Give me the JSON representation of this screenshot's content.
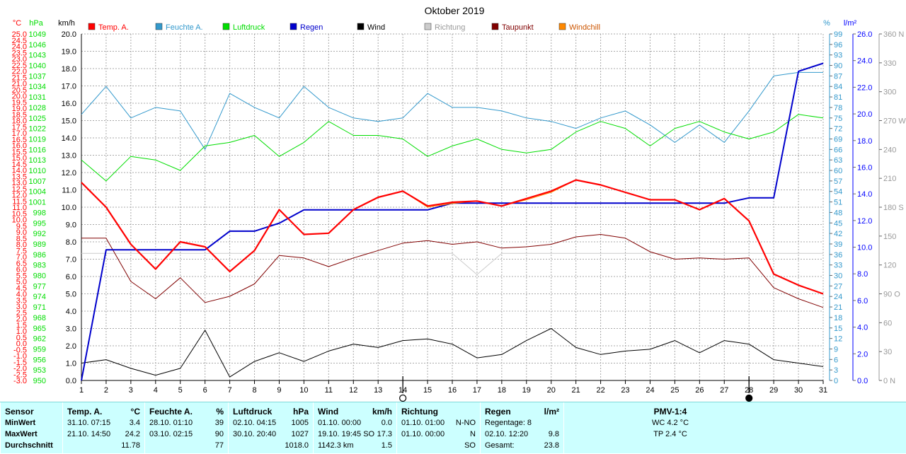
{
  "chart_data": {
    "type": "line",
    "title": "Oktober 2019",
    "x": [
      1,
      2,
      3,
      4,
      5,
      6,
      7,
      8,
      9,
      10,
      11,
      12,
      13,
      14,
      15,
      16,
      17,
      18,
      19,
      20,
      21,
      22,
      23,
      24,
      25,
      26,
      27,
      28,
      29,
      30,
      31
    ],
    "xlim": [
      1,
      31
    ],
    "x_markers": [
      14,
      28
    ],
    "axes": [
      {
        "unit": "°C",
        "color": "#ff0000",
        "min": -3.0,
        "max": 25.0,
        "step": 0.5,
        "decimals": 1
      },
      {
        "unit": "hPa",
        "color": "#00dd00",
        "min": 950,
        "max": 1049,
        "step": 3,
        "decimals": 0
      },
      {
        "unit": "km/h",
        "color": "#000000",
        "min": 0.0,
        "max": 20.0,
        "step": 1.0,
        "decimals": 1
      },
      {
        "unit": "%",
        "color": "#3399cc",
        "min": 0,
        "max": 99,
        "step": 3,
        "decimals": 0
      },
      {
        "unit": "l/m²",
        "color": "#0000ff",
        "min": 0.0,
        "max": 26.0,
        "step": 2.0,
        "decimals": 1
      },
      {
        "unit": "",
        "color": "#999999",
        "min": 0,
        "max": 360,
        "step": 30,
        "decimals": 0,
        "labels": {
          "0": "0 N",
          "90": "90 O",
          "180": "180 S",
          "270": "270 W",
          "360": "360 N"
        }
      }
    ],
    "series": [
      {
        "name": "Temp. A.",
        "axis": 0,
        "color": "#ff0000",
        "width": 2.2,
        "values": [
          13.0,
          11.0,
          8.0,
          6.0,
          8.2,
          7.8,
          5.8,
          7.5,
          10.8,
          8.8,
          8.9,
          10.8,
          11.8,
          12.3,
          11.1,
          11.4,
          11.5,
          11.1,
          11.7,
          12.3,
          13.2,
          12.8,
          12.2,
          11.6,
          11.6,
          10.8,
          11.7,
          9.9,
          5.6,
          4.7,
          4.0
        ]
      },
      {
        "name": "Feuchte A.",
        "axis": 3,
        "color": "#3399cc",
        "width": 1,
        "values": [
          76,
          84,
          75,
          78,
          77,
          66,
          82,
          78,
          75,
          84,
          78,
          75,
          74,
          75,
          82,
          78,
          78,
          77,
          75,
          74,
          72,
          75,
          77,
          73,
          68,
          73,
          68,
          77,
          87,
          88,
          88
        ]
      },
      {
        "name": "Luftdruck",
        "axis": 1,
        "color": "#00dd00",
        "width": 1,
        "values": [
          1013,
          1007,
          1014,
          1013,
          1010,
          1017,
          1018,
          1020,
          1014,
          1018,
          1024,
          1020,
          1020,
          1019,
          1014,
          1017,
          1019,
          1016,
          1015,
          1016,
          1021,
          1024,
          1022,
          1017,
          1022,
          1024,
          1021,
          1019,
          1021,
          1026,
          1025
        ]
      },
      {
        "name": "Regen",
        "axis": 4,
        "color": "#0000cc",
        "width": 2,
        "values": [
          0.0,
          9.8,
          9.8,
          9.8,
          9.8,
          9.8,
          11.2,
          11.2,
          11.8,
          12.8,
          12.8,
          12.8,
          12.8,
          12.8,
          12.8,
          13.3,
          13.3,
          13.3,
          13.3,
          13.3,
          13.3,
          13.3,
          13.3,
          13.3,
          13.3,
          13.3,
          13.3,
          13.7,
          13.7,
          23.2,
          23.8
        ]
      },
      {
        "name": "Wind",
        "axis": 2,
        "color": "#000000",
        "width": 1,
        "values": [
          1.0,
          1.2,
          0.7,
          0.3,
          0.7,
          2.9,
          0.2,
          1.1,
          1.6,
          1.1,
          1.7,
          2.1,
          1.9,
          2.3,
          2.4,
          2.1,
          1.3,
          1.5,
          2.3,
          3.0,
          1.9,
          1.5,
          1.7,
          1.8,
          2.3,
          1.6,
          2.3,
          2.1,
          1.2,
          1.0,
          0.8
        ]
      },
      {
        "name": "Richtung",
        "axis": 5,
        "color": "#cccccc",
        "width": 1,
        "values": [
          132,
          132,
          132,
          132,
          132,
          132,
          132,
          132,
          132,
          132,
          132,
          132,
          132,
          132,
          132,
          132,
          110,
          132,
          132,
          132,
          132,
          132,
          132,
          132,
          132,
          132,
          132,
          132,
          132,
          132,
          132
        ]
      },
      {
        "name": "Taupunkt",
        "axis": 0,
        "color": "#800000",
        "width": 1,
        "values": [
          8.5,
          8.5,
          5.0,
          3.6,
          5.3,
          3.3,
          3.8,
          4.8,
          7.1,
          6.9,
          6.2,
          6.9,
          7.5,
          8.1,
          8.3,
          8.0,
          8.2,
          7.7,
          7.8,
          8.0,
          8.6,
          8.8,
          8.5,
          7.4,
          6.8,
          6.9,
          6.8,
          6.9,
          4.5,
          3.6,
          2.9
        ]
      },
      {
        "name": "Windchill",
        "axis": 0,
        "color": "#ff8800",
        "width": 1,
        "values": [
          13.0,
          11.0,
          8.0,
          6.0,
          8.2,
          7.8,
          5.8,
          7.5,
          10.8,
          8.8,
          8.9,
          10.8,
          11.8,
          12.3,
          11.0,
          11.3,
          11.5,
          11.1,
          11.6,
          12.2,
          13.2,
          12.8,
          12.2,
          11.6,
          11.6,
          10.8,
          11.7,
          9.9,
          5.6,
          4.7,
          4.0
        ]
      }
    ]
  },
  "stats": {
    "sensor": {
      "title": "Sensor",
      "min": "MinWert",
      "max": "MaxWert",
      "avg": "Durchschnitt"
    },
    "temp": {
      "title": "Temp. A.",
      "unit": "°C",
      "min_time": "31.10.  07:15",
      "min_val": "3.4",
      "max_time": "21.10.  14:50",
      "max_val": "24.2",
      "avg": "11.78"
    },
    "humidity": {
      "title": "Feuchte A.",
      "unit": "%",
      "min_time": "28.10.  01:10",
      "min_val": "39",
      "max_time": "03.10.  02:15",
      "max_val": "90",
      "avg": "77"
    },
    "pressure": {
      "title": "Luftdruck",
      "unit": "hPa",
      "min_time": "02.10.  04:15",
      "min_val": "1005",
      "max_time": "30.10.  20:40",
      "max_val": "1027",
      "avg": "1018.0"
    },
    "wind": {
      "title": "Wind",
      "unit": "km/h",
      "min_time": "01.10.  00:00",
      "min_val": "0.0",
      "max_time": "19.10.  19:45 SO",
      "max_val": "17.3",
      "avg_dist": "1142.3 km",
      "avg": "1.5"
    },
    "direction": {
      "title": "Richtung",
      "min_time": "01.10.  01:00",
      "min_val": "N-NO",
      "max_time": "01.10.  00:00",
      "max_val": "N",
      "avg": "SO"
    },
    "rain": {
      "title": "Regen",
      "unit": "l/m²",
      "days_label": "Regentage: 8",
      "max_time": "02.10.  12:20",
      "max_val": "9.8",
      "total_label": "Gesamt:",
      "total": "23.8"
    },
    "pmv": {
      "title": "PMV-1:4",
      "wc": "WC 4.2 °C",
      "tp": "TP 2.4 °C"
    }
  }
}
